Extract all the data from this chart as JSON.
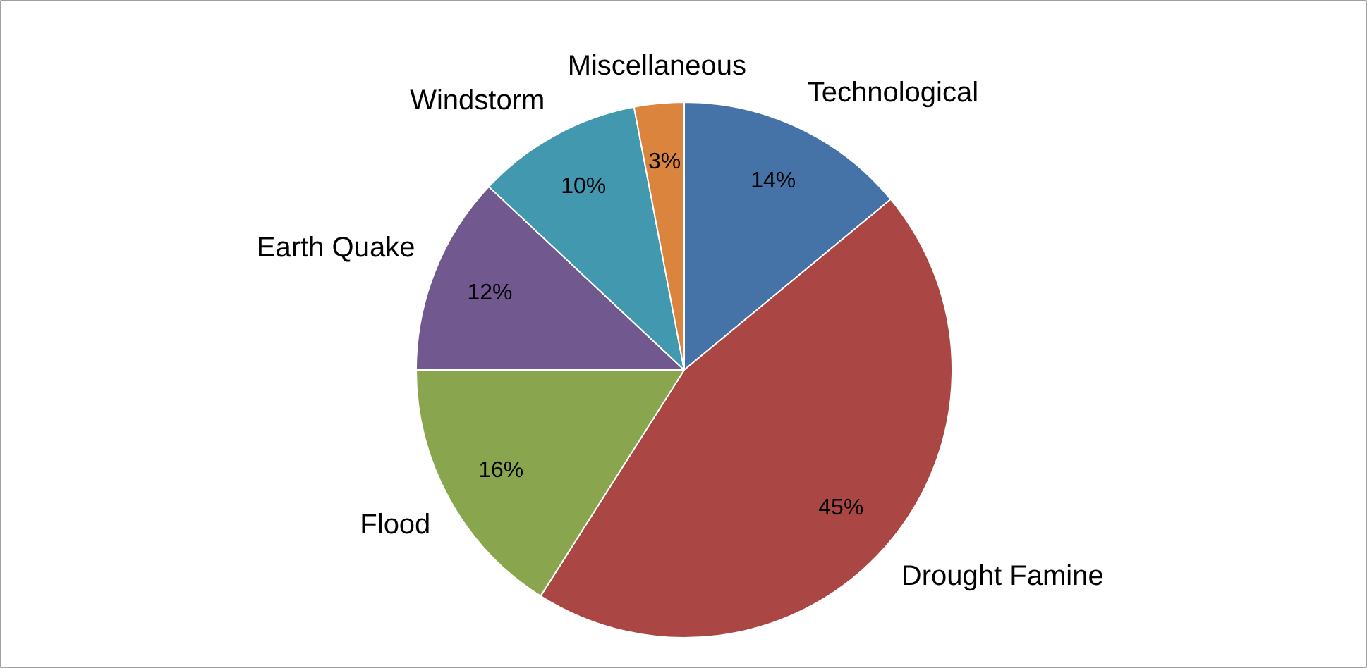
{
  "chart_data": {
    "type": "pie",
    "categories": [
      "Technological",
      "Drought Famine",
      "Flood",
      "Earth Quake",
      "Windstorm",
      "Miscellaneous"
    ],
    "values": [
      14,
      45,
      16,
      12,
      10,
      3
    ],
    "value_labels": [
      "14%",
      "45%",
      "16%",
      "12%",
      "10%",
      "3%"
    ],
    "colors": [
      "#4572a7",
      "#aa4643",
      "#89a54e",
      "#71588f",
      "#4198af",
      "#db843d"
    ],
    "legend": false
  }
}
